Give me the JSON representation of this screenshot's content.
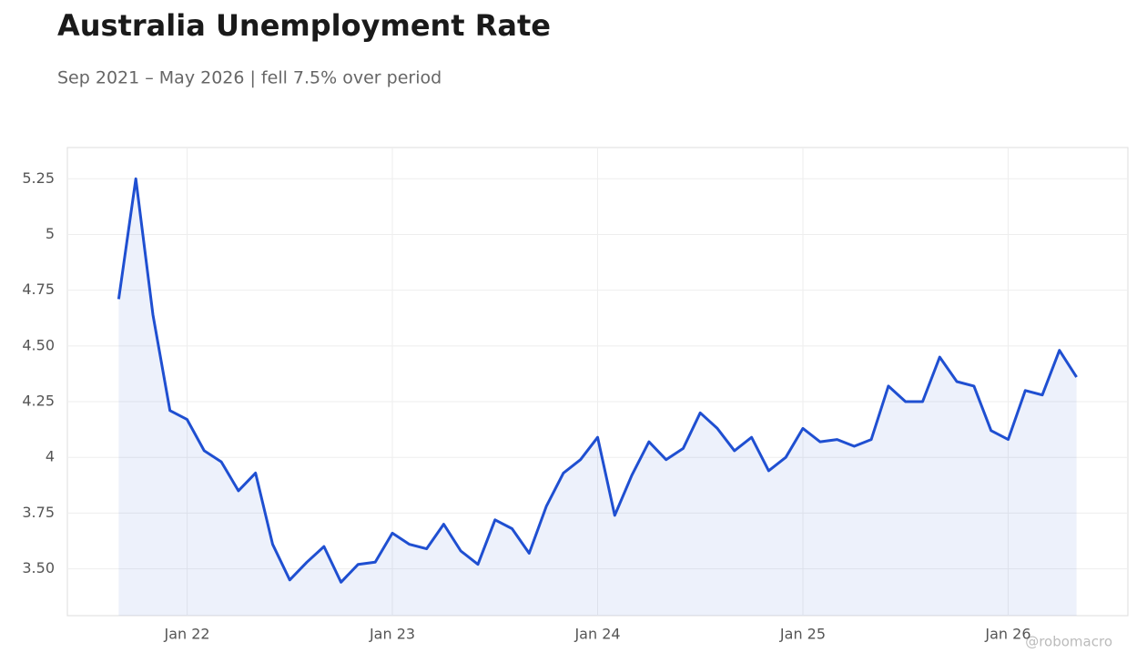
{
  "chart_data": {
    "type": "line",
    "title": "Australia Unemployment Rate",
    "subtitle": "Sep 2021 – May 2026 | fell 7.5% over period",
    "watermark": "@robomacro",
    "x": [
      "2021-09",
      "2021-10",
      "2021-11",
      "2021-12",
      "2022-01",
      "2022-02",
      "2022-03",
      "2022-04",
      "2022-05",
      "2022-06",
      "2022-07",
      "2022-08",
      "2022-09",
      "2022-10",
      "2022-11",
      "2022-12",
      "2023-01",
      "2023-02",
      "2023-03",
      "2023-04",
      "2023-05",
      "2023-06",
      "2023-07",
      "2023-08",
      "2023-09",
      "2023-10",
      "2023-11",
      "2023-12",
      "2024-01",
      "2024-02",
      "2024-03",
      "2024-04",
      "2024-05",
      "2024-06",
      "2024-07",
      "2024-08",
      "2024-09",
      "2024-10",
      "2024-11",
      "2024-12",
      "2025-01",
      "2025-02",
      "2025-03",
      "2025-04",
      "2025-05",
      "2025-06",
      "2025-07",
      "2025-08",
      "2025-09",
      "2025-10",
      "2025-11",
      "2025-12",
      "2026-01",
      "2026-02",
      "2026-03",
      "2026-04",
      "2026-05"
    ],
    "series": [
      {
        "name": "Unemployment rate",
        "color": "#1f4fd1",
        "values": [
          4.71,
          5.25,
          4.64,
          4.21,
          4.17,
          4.03,
          3.98,
          3.85,
          3.93,
          3.61,
          3.45,
          3.53,
          3.6,
          3.44,
          3.52,
          3.53,
          3.66,
          3.61,
          3.59,
          3.7,
          3.58,
          3.52,
          3.72,
          3.68,
          3.57,
          3.78,
          3.93,
          3.99,
          4.09,
          3.74,
          3.92,
          4.07,
          3.99,
          4.04,
          4.2,
          4.13,
          4.03,
          4.09,
          3.94,
          4.0,
          4.13,
          4.07,
          4.08,
          4.05,
          4.08,
          4.32,
          4.25,
          4.25,
          4.45,
          4.34,
          4.32,
          4.12,
          4.08,
          4.3,
          4.28,
          4.48,
          4.36
        ]
      }
    ],
    "xlim": [
      "2021-06",
      "2026-08"
    ],
    "xticks": [
      {
        "value": "2022-01",
        "label": "Jan 22"
      },
      {
        "value": "2023-01",
        "label": "Jan 23"
      },
      {
        "value": "2024-01",
        "label": "Jan 24"
      },
      {
        "value": "2025-01",
        "label": "Jan 25"
      },
      {
        "value": "2026-01",
        "label": "Jan 26"
      }
    ],
    "ylim": [
      3.29,
      5.39
    ],
    "yticks": [
      {
        "value": 3.5,
        "label": "3.50"
      },
      3.75,
      4,
      4.25,
      {
        "value": 4.5,
        "label": "4.50"
      },
      4.75,
      5,
      5.25
    ],
    "grid": true,
    "area": true
  }
}
